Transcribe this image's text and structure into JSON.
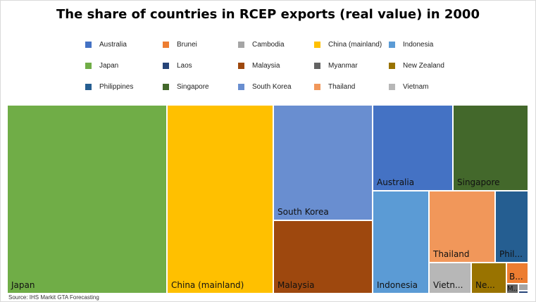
{
  "chart_data": {
    "type": "treemap",
    "title": "The share of countries in RCEP exports (real value) in 2000",
    "source": "Source: IHS Markit GTA Forecasting",
    "legend": [
      {
        "name": "Australia",
        "color": "#4472C4"
      },
      {
        "name": "Brunei",
        "color": "#ED7D31"
      },
      {
        "name": "Cambodia",
        "color": "#A5A5A5"
      },
      {
        "name": "China (mainland)",
        "color": "#FFC000"
      },
      {
        "name": "Indonesia",
        "color": "#5B9BD5"
      },
      {
        "name": "Japan",
        "color": "#70AD47"
      },
      {
        "name": "Laos",
        "color": "#264478"
      },
      {
        "name": "Malaysia",
        "color": "#9E480E"
      },
      {
        "name": "Myanmar",
        "color": "#636363"
      },
      {
        "name": "New Zealand",
        "color": "#997300"
      },
      {
        "name": "Philippines",
        "color": "#255E91"
      },
      {
        "name": "Singapore",
        "color": "#43682B"
      },
      {
        "name": "South Korea",
        "color": "#698ED0"
      },
      {
        "name": "Thailand",
        "color": "#F1975A"
      },
      {
        "name": "Vietnam",
        "color": "#B7B7B7"
      }
    ],
    "tiles": [
      {
        "label": "Japan",
        "value": 30.9,
        "color": "#70AD47"
      },
      {
        "label": "China (mainland)",
        "value": 18.8,
        "color": "#FFC000"
      },
      {
        "label": "South Korea",
        "value": 11.0,
        "color": "#698ED0"
      },
      {
        "label": "Malaysia",
        "value": 6.9,
        "color": "#9E480E"
      },
      {
        "label": "Australia",
        "value": 7.5,
        "color": "#4472C4"
      },
      {
        "label": "Singapore",
        "value": 6.9,
        "color": "#43682B"
      },
      {
        "label": "Indonesia",
        "value": 5.5,
        "color": "#5B9BD5"
      },
      {
        "label": "Thailand",
        "value": 4.6,
        "color": "#F1975A"
      },
      {
        "label": "Phil...",
        "value": 2.6,
        "color": "#255E91"
      },
      {
        "label": "Vietn...",
        "value": 1.5,
        "color": "#B7B7B7"
      },
      {
        "label": "Ne...",
        "value": 1.3,
        "color": "#997300"
      },
      {
        "label": "B...",
        "value": 0.5,
        "color": "#ED7D31"
      },
      {
        "label": "M...",
        "value": 0.2,
        "color": "#636363"
      },
      {
        "label": "",
        "value": 0.1,
        "color": "#A5A5A5"
      },
      {
        "label": "",
        "value": 0.05,
        "color": "#264478"
      }
    ]
  }
}
